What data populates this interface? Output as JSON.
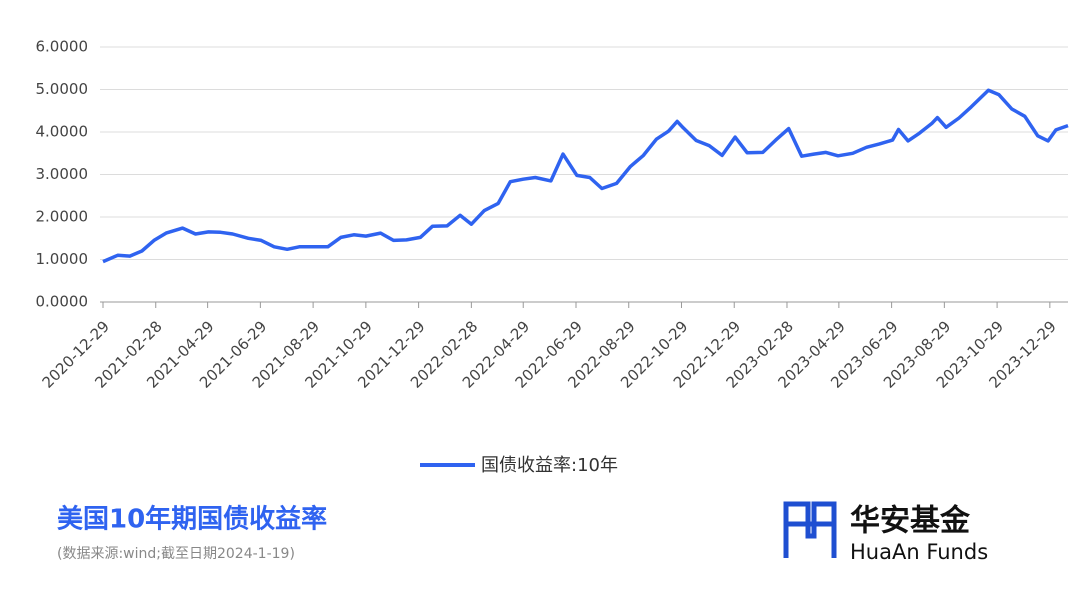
{
  "chart_data": {
    "type": "line",
    "title": "美国10年期国债收益率",
    "note": "(数据来源:wind;截至日期2024-1-19)",
    "x": [
      "2020-12-29",
      "2021-01-15",
      "2021-01-29",
      "2021-02-12",
      "2021-02-26",
      "2021-03-12",
      "2021-03-31",
      "2021-04-15",
      "2021-04-30",
      "2021-05-14",
      "2021-05-28",
      "2021-06-15",
      "2021-06-30",
      "2021-07-15",
      "2021-07-30",
      "2021-08-13",
      "2021-08-31",
      "2021-09-15",
      "2021-09-30",
      "2021-10-15",
      "2021-10-29",
      "2021-11-15",
      "2021-11-30",
      "2021-12-15",
      "2021-12-31",
      "2022-01-14",
      "2022-01-31",
      "2022-02-15",
      "2022-02-28",
      "2022-03-15",
      "2022-03-31",
      "2022-04-14",
      "2022-04-29",
      "2022-05-13",
      "2022-05-31",
      "2022-06-14",
      "2022-06-30",
      "2022-07-15",
      "2022-07-29",
      "2022-08-15",
      "2022-08-31",
      "2022-09-15",
      "2022-09-30",
      "2022-10-14",
      "2022-10-24",
      "2022-10-31",
      "2022-11-15",
      "2022-11-30",
      "2022-12-15",
      "2022-12-30",
      "2023-01-13",
      "2023-01-31",
      "2023-02-15",
      "2023-03-02",
      "2023-03-17",
      "2023-03-31",
      "2023-04-14",
      "2023-04-28",
      "2023-05-15",
      "2023-05-31",
      "2023-06-15",
      "2023-06-30",
      "2023-07-07",
      "2023-07-18",
      "2023-07-31",
      "2023-08-15",
      "2023-08-21",
      "2023-08-31",
      "2023-09-15",
      "2023-09-29",
      "2023-10-19",
      "2023-10-31",
      "2023-11-15",
      "2023-11-30",
      "2023-12-15",
      "2023-12-27",
      "2024-01-05",
      "2024-01-19"
    ],
    "series": [
      {
        "name": "国债收益率:10年",
        "color": "#2f63f0",
        "values": [
          0.95,
          1.1,
          1.08,
          1.2,
          1.45,
          1.62,
          1.74,
          1.6,
          1.65,
          1.64,
          1.6,
          1.5,
          1.45,
          1.3,
          1.24,
          1.3,
          1.3,
          1.3,
          1.52,
          1.58,
          1.55,
          1.62,
          1.45,
          1.46,
          1.52,
          1.78,
          1.79,
          2.04,
          1.83,
          2.15,
          2.32,
          2.83,
          2.89,
          2.93,
          2.85,
          3.48,
          2.98,
          2.93,
          2.67,
          2.79,
          3.19,
          3.45,
          3.83,
          4.02,
          4.25,
          4.1,
          3.8,
          3.68,
          3.45,
          3.88,
          3.51,
          3.52,
          3.81,
          4.08,
          3.43,
          3.48,
          3.52,
          3.44,
          3.5,
          3.64,
          3.72,
          3.81,
          4.06,
          3.79,
          3.97,
          4.21,
          4.34,
          4.11,
          4.33,
          4.59,
          4.98,
          4.88,
          4.54,
          4.37,
          3.91,
          3.79,
          4.05,
          4.15
        ]
      }
    ],
    "xlim": [
      "2020-12-29",
      "2024-01-19"
    ],
    "xticks": [
      "2020-12-29",
      "2021-02-28",
      "2021-04-29",
      "2021-06-29",
      "2021-08-29",
      "2021-10-29",
      "2021-12-29",
      "2022-02-28",
      "2022-04-29",
      "2022-06-29",
      "2022-08-29",
      "2022-10-29",
      "2022-12-29",
      "2023-02-28",
      "2023-04-29",
      "2023-06-29",
      "2023-08-29",
      "2023-10-29",
      "2023-12-29"
    ],
    "ylim": [
      0,
      6
    ],
    "yticks": [
      {
        "value": 0,
        "label": "0.0000"
      },
      {
        "value": 1,
        "label": "1.0000"
      },
      {
        "value": 2,
        "label": "2.0000"
      },
      {
        "value": 3,
        "label": "3.0000"
      },
      {
        "value": 4,
        "label": "4.0000"
      },
      {
        "value": 5,
        "label": "5.0000"
      },
      {
        "value": 6,
        "label": "6.0000"
      }
    ],
    "grid": true,
    "legend": "bottom"
  },
  "brand": {
    "name": "华安基金",
    "name_en": "HuaAn Funds"
  }
}
